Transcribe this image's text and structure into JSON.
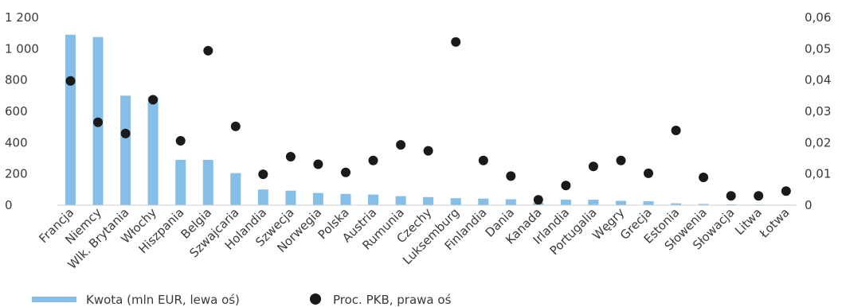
{
  "chart_data": {
    "type": "bar",
    "categories": [
      "Francja",
      "Niemcy",
      "Wlk. Brytania",
      "Włochy",
      "Hiszpania",
      "Belgia",
      "Szwajcaria",
      "Holandia",
      "Szwecja",
      "Norwegia",
      "Polska",
      "Austria",
      "Rumunia",
      "Czechy",
      "Luksemburg",
      "Finlandia",
      "Dania",
      "Kanada",
      "Irlandia",
      "Portugalia",
      "Węgry",
      "Grecja",
      "Estonia",
      "Słowenia",
      "Słowacja",
      "Litwa",
      "Łotwa"
    ],
    "series": [
      {
        "name": "Kwota (mln EUR, lewa oś)",
        "kind": "bar",
        "axis": "left",
        "color": "#85bfe8",
        "values": [
          1090,
          1075,
          700,
          690,
          290,
          290,
          205,
          100,
          93,
          78,
          72,
          68,
          58,
          52,
          45,
          42,
          38,
          15,
          35,
          35,
          28,
          25,
          12,
          8,
          5,
          4,
          3
        ]
      },
      {
        "name": "Proc. PKB, prawa oś",
        "kind": "scatter",
        "axis": "right",
        "color": "#1a1a1a",
        "values": [
          0.0397,
          0.0265,
          0.0229,
          0.0337,
          0.0206,
          0.0494,
          0.0252,
          0.0099,
          0.0155,
          0.0131,
          0.0105,
          0.0143,
          0.0193,
          0.0174,
          0.0522,
          0.0143,
          0.0093,
          0.0017,
          0.0063,
          0.0124,
          0.0143,
          0.0102,
          0.0239,
          0.0089,
          0.003,
          0.003,
          0.0045
        ]
      }
    ],
    "left_axis": {
      "min": 0,
      "max": 1200,
      "ticks": [
        0,
        200,
        400,
        600,
        800,
        1000,
        1200
      ],
      "tick_labels": [
        "0",
        "200",
        "400",
        "600",
        "800",
        "1 000",
        "1 200"
      ]
    },
    "right_axis": {
      "min": 0,
      "max": 0.06,
      "ticks": [
        0,
        0.01,
        0.02,
        0.03,
        0.04,
        0.05,
        0.06
      ],
      "tick_labels": [
        "0",
        "0,01",
        "0,02",
        "0,03",
        "0,04",
        "0,05",
        "0,06"
      ]
    },
    "grid": false,
    "legend_position": "bottom-left",
    "title": "",
    "xlabel": "",
    "ylabel": ""
  }
}
